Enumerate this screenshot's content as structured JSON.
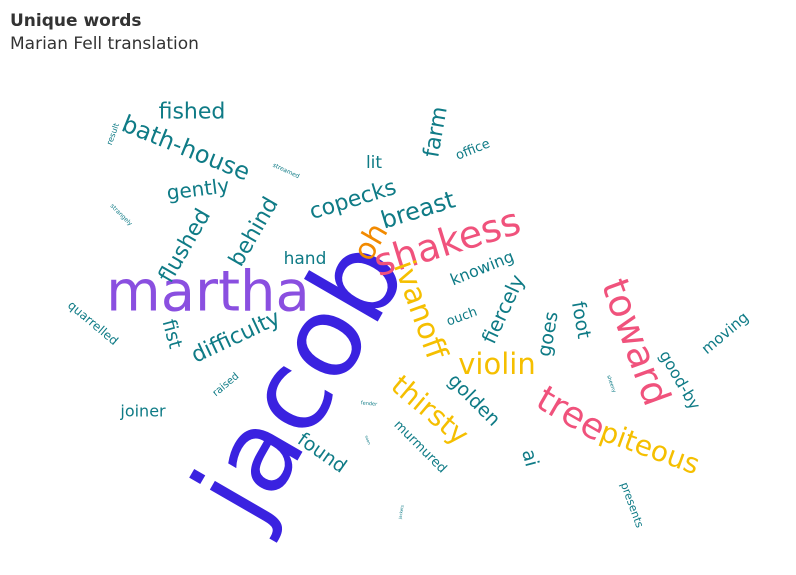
{
  "header": {
    "title": "Unique words",
    "subtitle": "Marian Fell translation"
  },
  "chart_data": {
    "type": "wordcloud",
    "title": "Unique words",
    "subtitle": "Marian Fell translation",
    "colors": {
      "teal": "#0f7b86",
      "purple": "#8a4fe0",
      "blue": "#3a22e0",
      "pink": "#f0527c",
      "yellow": "#f5bf00",
      "orange": "#f28a00"
    },
    "words": [
      {
        "text": "jacob",
        "color": "#3a22e0",
        "weight": 100
      },
      {
        "text": "martha",
        "color": "#8a4fe0",
        "weight": 60
      },
      {
        "text": "shakess",
        "color": "#f0527c",
        "weight": 40
      },
      {
        "text": "toward",
        "color": "#f0527c",
        "weight": 36
      },
      {
        "text": "tree",
        "color": "#f0527c",
        "weight": 34
      },
      {
        "text": "oh",
        "color": "#f28a00",
        "weight": 32
      },
      {
        "text": "ivanoff",
        "color": "#f5bf00",
        "weight": 30
      },
      {
        "text": "violin",
        "color": "#f5bf00",
        "weight": 30
      },
      {
        "text": "thirsty",
        "color": "#f5bf00",
        "weight": 30
      },
      {
        "text": "piteous",
        "color": "#f5bf00",
        "weight": 30
      },
      {
        "text": "breast",
        "color": "#0f7b86",
        "weight": 24
      },
      {
        "text": "copecks",
        "color": "#0f7b86",
        "weight": 22
      },
      {
        "text": "bath-house",
        "color": "#0f7b86",
        "weight": 22
      },
      {
        "text": "fished",
        "color": "#0f7b86",
        "weight": 22
      },
      {
        "text": "difficulty",
        "color": "#0f7b86",
        "weight": 22
      },
      {
        "text": "behind",
        "color": "#0f7b86",
        "weight": 20
      },
      {
        "text": "flushed",
        "color": "#0f7b86",
        "weight": 20
      },
      {
        "text": "farm",
        "color": "#0f7b86",
        "weight": 20
      },
      {
        "text": "gently",
        "color": "#0f7b86",
        "weight": 19
      },
      {
        "text": "fiercely",
        "color": "#0f7b86",
        "weight": 18
      },
      {
        "text": "goes",
        "color": "#0f7b86",
        "weight": 18
      },
      {
        "text": "foot",
        "color": "#0f7b86",
        "weight": 18
      },
      {
        "text": "golden",
        "color": "#0f7b86",
        "weight": 18
      },
      {
        "text": "found",
        "color": "#0f7b86",
        "weight": 18
      },
      {
        "text": "fist",
        "color": "#0f7b86",
        "weight": 18
      },
      {
        "text": "ai",
        "color": "#0f7b86",
        "weight": 18
      },
      {
        "text": "hand",
        "color": "#0f7b86",
        "weight": 17
      },
      {
        "text": "lit",
        "color": "#0f7b86",
        "weight": 16
      },
      {
        "text": "joiner",
        "color": "#0f7b86",
        "weight": 16
      },
      {
        "text": "knowing",
        "color": "#0f7b86",
        "weight": 16
      },
      {
        "text": "good-by",
        "color": "#0f7b86",
        "weight": 16
      },
      {
        "text": "moving",
        "color": "#0f7b86",
        "weight": 15
      },
      {
        "text": "murmured",
        "color": "#0f7b86",
        "weight": 13
      },
      {
        "text": "office",
        "color": "#0f7b86",
        "weight": 13
      },
      {
        "text": "ouch",
        "color": "#0f7b86",
        "weight": 13
      },
      {
        "text": "quarrelled",
        "color": "#0f7b86",
        "weight": 12
      },
      {
        "text": "presents",
        "color": "#0f7b86",
        "weight": 11
      },
      {
        "text": "raised",
        "color": "#0f7b86",
        "weight": 10
      },
      {
        "text": "result",
        "color": "#0f7b86",
        "weight": 8
      },
      {
        "text": "strangely",
        "color": "#0f7b86",
        "weight": 6
      },
      {
        "text": "streamed",
        "color": "#0f7b86",
        "weight": 6
      },
      {
        "text": "fender",
        "color": "#0f7b86",
        "weight": 5
      },
      {
        "text": "sheeny",
        "color": "#0f7b86",
        "weight": 5
      },
      {
        "text": "soon",
        "color": "#0f7b86",
        "weight": 4
      },
      {
        "text": "jackets",
        "color": "#0f7b86",
        "weight": 4
      }
    ]
  }
}
